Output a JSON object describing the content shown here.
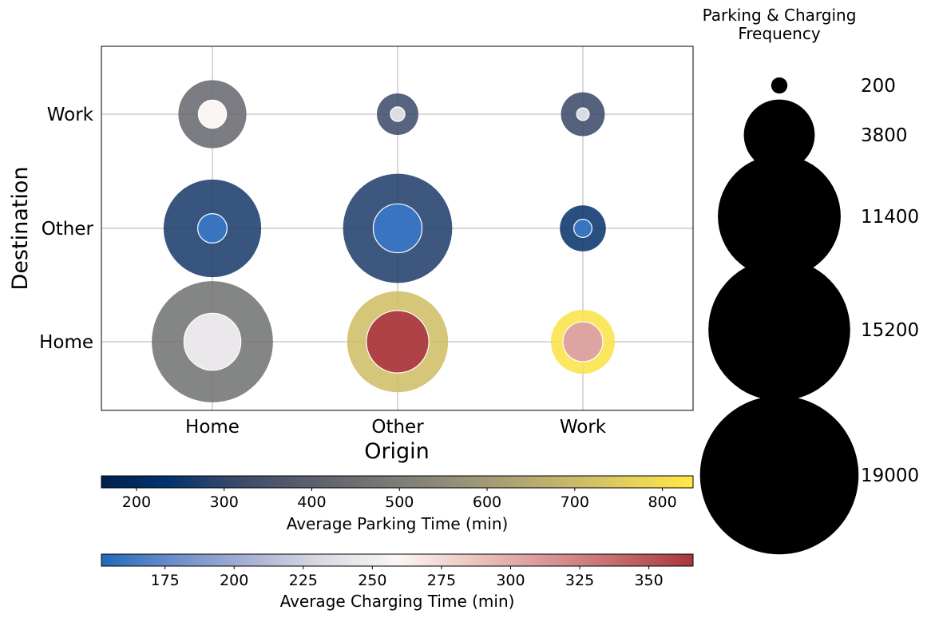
{
  "chart_data": {
    "type": "scatter",
    "subtype": "bubble-matrix",
    "xlabel": "Origin",
    "ylabel": "Destination",
    "x_categories": [
      "Home",
      "Other",
      "Work"
    ],
    "y_categories": [
      "Home",
      "Other",
      "Work"
    ],
    "grid": true,
    "points": [
      {
        "origin": "Home",
        "destination": "Work",
        "parking_frequency": 3500,
        "charging_frequency": 600,
        "avg_parking_time": 440,
        "avg_charging_time": 258
      },
      {
        "origin": "Other",
        "destination": "Work",
        "parking_frequency": 1300,
        "charging_frequency": 160,
        "avg_parking_time": 330,
        "avg_charging_time": 235
      },
      {
        "origin": "Work",
        "destination": "Work",
        "parking_frequency": 1450,
        "charging_frequency": 120,
        "avg_parking_time": 320,
        "avg_charging_time": 232
      },
      {
        "origin": "Home",
        "destination": "Other",
        "parking_frequency": 7200,
        "charging_frequency": 650,
        "avg_parking_time": 270,
        "avg_charging_time": 160
      },
      {
        "origin": "Other",
        "destination": "Other",
        "parking_frequency": 9000,
        "charging_frequency": 1800,
        "avg_parking_time": 280,
        "avg_charging_time": 160
      },
      {
        "origin": "Work",
        "destination": "Other",
        "parking_frequency": 1600,
        "charging_frequency": 250,
        "avg_parking_time": 250,
        "avg_charging_time": 160
      },
      {
        "origin": "Home",
        "destination": "Home",
        "parking_frequency": 11100,
        "charging_frequency": 2450,
        "avg_parking_time": 470,
        "avg_charging_time": 245
      },
      {
        "origin": "Other",
        "destination": "Home",
        "parking_frequency": 7700,
        "charging_frequency": 2950,
        "avg_parking_time": 710,
        "avg_charging_time": 360
      },
      {
        "origin": "Work",
        "destination": "Home",
        "parking_frequency": 3100,
        "charging_frequency": 1200,
        "avg_parking_time": 820,
        "avg_charging_time": 305
      }
    ],
    "size_legend": {
      "title": "Parking & Charging\nFrequency",
      "entries": [
        200,
        3800,
        11400,
        15200,
        19000
      ]
    },
    "colorbars": [
      {
        "label": "Average Parking Time (min)",
        "range": [
          160,
          835
        ],
        "ticks": [
          200,
          300,
          400,
          500,
          600,
          700,
          800
        ],
        "colormap": "cividis",
        "stops": [
          "#00204c",
          "#00336f",
          "#39486b",
          "#575c6d",
          "#707173",
          "#8a8779",
          "#a69d75",
          "#c4b56b",
          "#e4cf5b",
          "#ffe945"
        ]
      },
      {
        "label": "Average Charging Time (min)",
        "range": [
          152,
          366
        ],
        "ticks": [
          175,
          200,
          225,
          250,
          275,
          300,
          325,
          350
        ],
        "colormap": "vlag",
        "stops": [
          "#2369bd",
          "#6e8fc9",
          "#a9b1d4",
          "#dadbe3",
          "#fbf6f4",
          "#ebc7c0",
          "#d99797",
          "#c26a6c",
          "#a9373b"
        ]
      }
    ]
  }
}
